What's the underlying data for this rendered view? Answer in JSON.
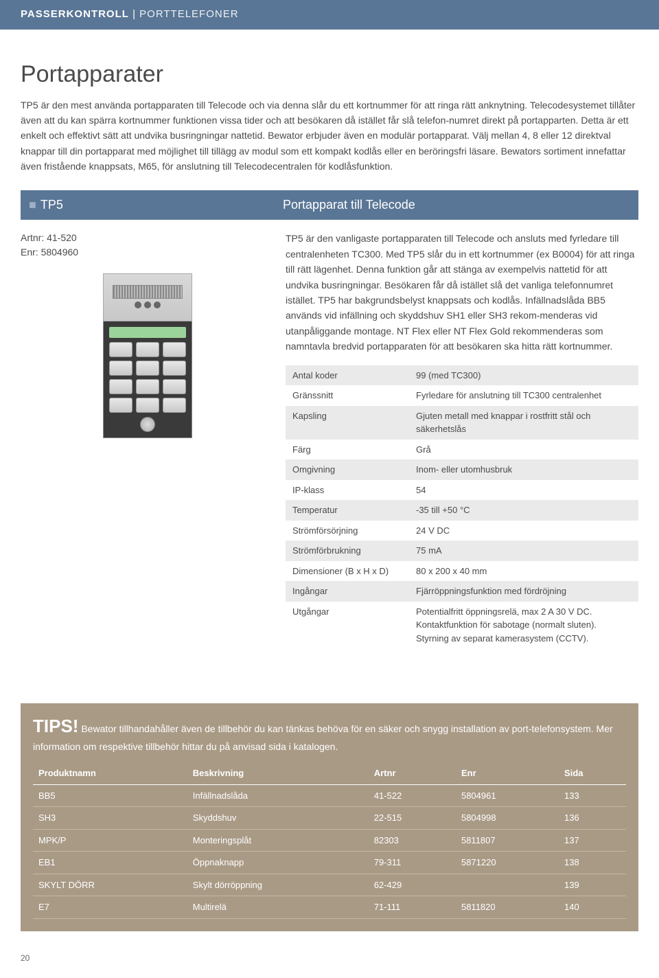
{
  "header": {
    "category_bold": "PASSERKONTROLL",
    "separator": " | ",
    "category_light": "PORTTELEFONER"
  },
  "page_title": "Portapparater",
  "intro": "TP5 är den mest använda portapparaten till Telecode och via denna slår du ett kortnummer för att ringa rätt anknytning. Telecodesystemet tillåter även att du kan spärra kortnummer funktionen vissa tider och att besökaren då istället får slå telefon-numret direkt på portapparten. Detta är ett enkelt och effektivt sätt att undvika busringningar nattetid. Bewator erbjuder även en modulär portapparat. Välj mellan 4, 8 eller 12 direktval knappar till din portapparat med möjlighet till tillägg av modul som ett kompakt kodlås eller en beröringsfri läsare. Bewators sortiment innefattar även fristående knappsats, M65, för anslutning till Telecodecentralen för kodlåsfunktion.",
  "section": {
    "left_label": "TP5",
    "right_label": "Portapparat till Telecode"
  },
  "product": {
    "artnr": "Artnr: 41-520",
    "enr": "Enr: 5804960",
    "description": "TP5 är den vanligaste portapparaten till Telecode och ansluts med fyrledare till centralenheten TC300. Med TP5 slår du in ett kortnummer (ex B0004) för att ringa till rätt lägenhet. Denna funktion går att stänga av exempelvis nattetid för att undvika busringningar. Besökaren får då istället slå det vanliga telefonnumret istället. TP5 har bakgrundsbelyst knappsats och kodlås. Infällnadslåda BB5 används vid infällning och skyddshuv SH1 eller SH3 rekom-menderas vid utanpåliggande montage. NT Flex eller NT Flex Gold rekommenderas som namntavla bredvid portapparaten för att besökaren ska hitta rätt kortnummer."
  },
  "specs": [
    {
      "k": "Antal koder",
      "v": "99 (med TC300)"
    },
    {
      "k": "Gränssnitt",
      "v": "Fyrledare för anslutning till TC300 centralenhet"
    },
    {
      "k": "Kapsling",
      "v": "Gjuten metall med knappar i rostfritt stål och säkerhetslås"
    },
    {
      "k": "Färg",
      "v": "Grå"
    },
    {
      "k": "Omgivning",
      "v": "Inom- eller utomhusbruk"
    },
    {
      "k": "IP-klass",
      "v": "54"
    },
    {
      "k": "Temperatur",
      "v": "-35 till +50 °C"
    },
    {
      "k": "Strömförsörjning",
      "v": "24 V DC"
    },
    {
      "k": "Strömförbrukning",
      "v": "75 mA"
    },
    {
      "k": "Dimensioner (B x H x D)",
      "v": "80 x 200 x 40 mm"
    },
    {
      "k": "Ingångar",
      "v": "Fjärröppningsfunktion med fördröjning"
    },
    {
      "k": "Utgångar",
      "v": "Potentialfritt öppningsrelä, max 2 A 30 V DC. Kontaktfunktion för sabotage (normalt sluten). Styrning av separat kamerasystem (CCTV)."
    }
  ],
  "tips": {
    "title": "TIPS!",
    "text": " Bewator tillhandahåller även de tillbehör du kan tänkas behöva för en säker och snygg installation av port-telefonsystem. Mer information om respektive tillbehör hittar du på anvisad sida i katalogen.",
    "columns": [
      "Produktnamn",
      "Beskrivning",
      "Artnr",
      "Enr",
      "Sida"
    ],
    "rows": [
      [
        "BB5",
        "Infällnadslåda",
        "41-522",
        "5804961",
        "133"
      ],
      [
        "SH3",
        "Skyddshuv",
        "22-515",
        "5804998",
        "136"
      ],
      [
        "MPK/P",
        "Monteringsplåt",
        "82303",
        "5811807",
        "137"
      ],
      [
        "EB1",
        "Öppnaknapp",
        "79-311",
        "5871220",
        "138"
      ],
      [
        "SKYLT DÖRR",
        "Skylt dörröppning",
        "62-429",
        "",
        "139"
      ],
      [
        "E7",
        "Multirelä",
        "71-111",
        "5811820",
        "140"
      ]
    ]
  },
  "page_number": "20",
  "colors": {
    "header_bg": "#5a7696",
    "tips_bg": "#a99a86",
    "spec_row_odd": "#eaeaea",
    "spec_row_even": "#ffffff",
    "text": "#4a4a4a"
  }
}
